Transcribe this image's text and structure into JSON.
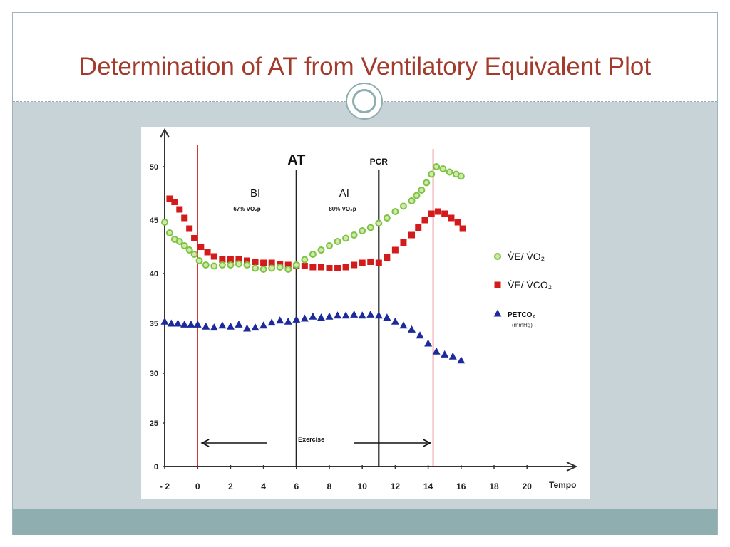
{
  "slide": {
    "title": "Determination of AT from Ventilatory Equivalent Plot"
  },
  "colors": {
    "title": "#a23b2b",
    "content_bg": "#c7d3d7",
    "footer_bg": "#8faeaf",
    "green": "#7dc242",
    "red": "#d41b1b",
    "blue": "#1c2a9c"
  },
  "chart_data": {
    "type": "scatter",
    "title": "",
    "xlabel": "Tempo",
    "ylabel": "",
    "x_ticks": [
      "- 2",
      "0",
      "2",
      "4",
      "6",
      "8",
      "10",
      "12",
      "14",
      "16",
      "18",
      "20"
    ],
    "y_ticks": [
      "0",
      "25",
      "30",
      "35",
      "40",
      "45",
      "50"
    ],
    "x_axis_label": "Tempo",
    "vertical_lines": [
      {
        "x": 0,
        "color": "red",
        "label": ""
      },
      {
        "x": 6,
        "color": "black",
        "label": "AT"
      },
      {
        "x": 11,
        "color": "black",
        "label": "PCR"
      },
      {
        "x": 14.3,
        "color": "red",
        "label": ""
      }
    ],
    "annotations": {
      "at": "AT",
      "pcr": "PCR",
      "bi": "BI",
      "bi_sub": "67% VO₂p",
      "ai": "AI",
      "ai_sub": "80% VO₂p",
      "exercise": "Exercise"
    },
    "legend": [
      {
        "label": "V̇E/ V̇O₂",
        "marker": "circle",
        "color": "green"
      },
      {
        "label": "V̇E/ V̇CO₂",
        "marker": "square",
        "color": "red"
      },
      {
        "label": "PETCO₂",
        "sub": "(mmHg)",
        "marker": "triangle",
        "color": "blue"
      }
    ],
    "series": [
      {
        "name": "V̇E/ V̇O₂",
        "marker": "circle",
        "color": "green",
        "x": [
          -2,
          -1.7,
          -1.4,
          -1.1,
          -0.8,
          -0.5,
          -0.2,
          0.1,
          0.5,
          1,
          1.5,
          2,
          2.5,
          3,
          3.5,
          4,
          4.5,
          5,
          5.5,
          6,
          6.5,
          7,
          7.5,
          8,
          8.5,
          9,
          9.5,
          10,
          10.5,
          11,
          11.5,
          12,
          12.5,
          13,
          13.3,
          13.6,
          13.9,
          14.2,
          14.5,
          14.9,
          15.3,
          15.7,
          16
        ],
        "y": [
          44.8,
          43.8,
          43.2,
          43.0,
          42.6,
          42.2,
          41.8,
          41.2,
          40.8,
          40.7,
          40.8,
          40.8,
          40.9,
          40.8,
          40.5,
          40.4,
          40.5,
          40.6,
          40.4,
          40.8,
          41.3,
          41.8,
          42.2,
          42.6,
          43.0,
          43.3,
          43.6,
          44.0,
          44.3,
          44.7,
          45.2,
          45.8,
          46.3,
          46.8,
          47.3,
          47.8,
          48.5,
          49.3,
          50.0,
          49.8,
          49.5,
          49.3,
          49.1
        ]
      },
      {
        "name": "V̇E/ V̇CO₂",
        "marker": "square",
        "color": "red",
        "x": [
          -1.7,
          -1.4,
          -1.1,
          -0.8,
          -0.5,
          -0.2,
          0.2,
          0.6,
          1,
          1.5,
          2,
          2.5,
          3,
          3.5,
          4,
          4.5,
          5,
          5.5,
          6,
          6.5,
          7,
          7.5,
          8,
          8.5,
          9,
          9.5,
          10,
          10.5,
          11,
          11.5,
          12,
          12.5,
          13,
          13.4,
          13.8,
          14.2,
          14.6,
          15,
          15.4,
          15.8,
          16.1
        ],
        "y": [
          47.0,
          46.7,
          46.0,
          45.2,
          44.2,
          43.3,
          42.5,
          42.0,
          41.6,
          41.3,
          41.3,
          41.3,
          41.2,
          41.1,
          41.0,
          41.0,
          40.9,
          40.8,
          40.7,
          40.7,
          40.6,
          40.6,
          40.5,
          40.5,
          40.6,
          40.8,
          41.0,
          41.1,
          41.0,
          41.5,
          42.2,
          42.9,
          43.6,
          44.3,
          45.0,
          45.6,
          45.8,
          45.6,
          45.2,
          44.8,
          44.2
        ]
      },
      {
        "name": "PETCO₂",
        "marker": "triangle",
        "color": "blue",
        "x": [
          -2,
          -1.6,
          -1.2,
          -0.8,
          -0.4,
          0,
          0.5,
          1,
          1.5,
          2,
          2.5,
          3,
          3.5,
          4,
          4.5,
          5,
          5.5,
          6,
          6.5,
          7,
          7.5,
          8,
          8.5,
          9,
          9.5,
          10,
          10.5,
          11,
          11.5,
          12,
          12.5,
          13,
          13.5,
          14,
          14.5,
          15,
          15.5,
          16
        ],
        "y": [
          35.2,
          35.0,
          35.0,
          34.9,
          34.9,
          34.9,
          34.7,
          34.6,
          34.8,
          34.7,
          34.9,
          34.5,
          34.6,
          34.8,
          35.1,
          35.3,
          35.2,
          35.4,
          35.5,
          35.7,
          35.6,
          35.7,
          35.8,
          35.8,
          35.9,
          35.8,
          35.9,
          35.8,
          35.6,
          35.2,
          34.8,
          34.4,
          33.8,
          33.0,
          32.2,
          31.9,
          31.7,
          31.3
        ]
      }
    ]
  }
}
